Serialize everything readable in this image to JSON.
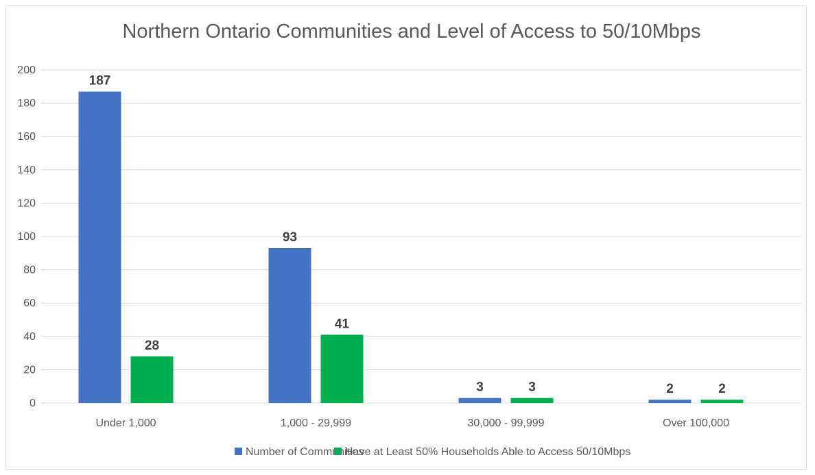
{
  "chart_data": {
    "type": "bar",
    "title": "Northern Ontario Communities and Level of Access to 50/10Mbps",
    "xlabel": "",
    "ylabel": "",
    "categories": [
      "Under 1,000",
      "1,000 - 29,999",
      "30,000 - 99,999",
      "Over 100,000"
    ],
    "series": [
      {
        "name": "Number of Communities",
        "values": [
          187,
          93,
          3,
          2
        ],
        "color": "#4472c4"
      },
      {
        "name": "Have at Least 50% Households Able to Access 50/10Mbps",
        "values": [
          28,
          41,
          3,
          2
        ],
        "color": "#00b050"
      }
    ],
    "ylim": [
      0,
      200
    ],
    "yticks": [
      0,
      20,
      40,
      60,
      80,
      100,
      120,
      140,
      160,
      180,
      200
    ],
    "grid": true,
    "legend_position": "bottom",
    "data_labels": true
  }
}
